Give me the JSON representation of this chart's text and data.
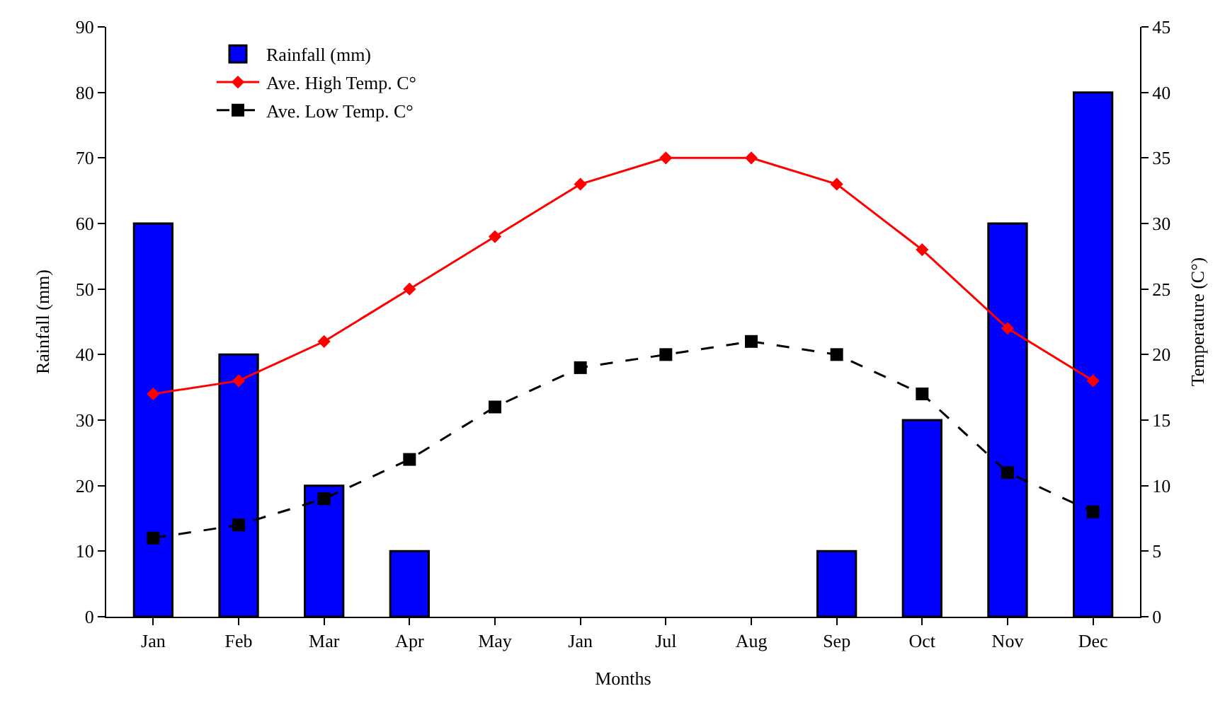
{
  "chart_data": {
    "type": "bar",
    "xlabel": "Months",
    "ylabel": "Rainfall (mm)",
    "y2label": "Temperature (C°)",
    "categories": [
      "Jan",
      "Feb",
      "Mar",
      "Apr",
      "May",
      "Jan",
      "Jul",
      "Aug",
      "Sep",
      "Oct",
      "Nov",
      "Dec"
    ],
    "series": [
      {
        "name": "Rainfall (mm)",
        "color": "#0000ff",
        "values": [
          60,
          40,
          20,
          10,
          null,
          null,
          null,
          null,
          10,
          30,
          60,
          80
        ]
      },
      {
        "name": "Ave. High Temp. C°",
        "type": "line",
        "axis": "y2",
        "color": "#ff0000",
        "marker": "diamond",
        "line_style": "solid",
        "values": [
          17,
          18,
          21,
          25,
          29,
          33,
          35,
          35,
          33,
          28,
          22,
          18
        ]
      },
      {
        "name": "Ave. Low Temp. C°",
        "type": "line",
        "axis": "y2",
        "color": "#000000",
        "marker": "square",
        "line_style": "dashed",
        "values": [
          6,
          7,
          9,
          12,
          16,
          19,
          20,
          21,
          20,
          17,
          11,
          8
        ]
      }
    ],
    "ylim": [
      0,
      90
    ],
    "yticks": [
      0,
      10,
      20,
      30,
      40,
      50,
      60,
      70,
      80,
      90
    ],
    "y2lim": [
      0,
      45
    ],
    "y2ticks": [
      0,
      5,
      10,
      15,
      20,
      25,
      30,
      35,
      40,
      45
    ],
    "legend": "top left"
  }
}
